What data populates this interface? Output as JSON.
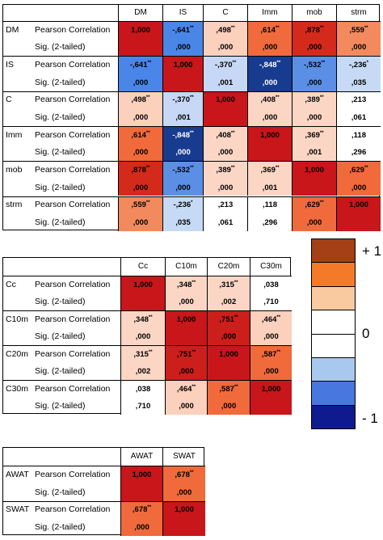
{
  "stat_labels": [
    "Pearson Correlation",
    "Sig. (2-tailed)"
  ],
  "tables": [
    {
      "columns": [
        "DM",
        "IS",
        "C",
        "Imm",
        "mob",
        "strm"
      ],
      "rows": [
        {
          "label": "DM",
          "cells": [
            {
              "value": "1,000",
              "color": "#c8161b"
            },
            {
              "value": "-,641",
              "stars": "**",
              "color": "#4a86e8"
            },
            {
              "value": ",498",
              "stars": "**",
              "color": "#fbd0bc"
            },
            {
              "value": ",614",
              "stars": "**",
              "color": "#f06a3c"
            },
            {
              "value": ",878",
              "stars": "**",
              "color": "#d42a1c"
            },
            {
              "value": ",559",
              "stars": "**",
              "color": "#f38a5e"
            }
          ],
          "sig": [
            null,
            ",000",
            ",000",
            ",000",
            ",000",
            ",000"
          ]
        },
        {
          "label": "IS",
          "cells": [
            {
              "value": "-,641",
              "stars": "**",
              "color": "#4a86e8"
            },
            {
              "value": "1,000",
              "color": "#c8161b"
            },
            {
              "value": "-,370",
              "stars": "**",
              "color": "#c6d8f5"
            },
            {
              "value": "-,848",
              "stars": "**",
              "color": "#173b8f"
            },
            {
              "value": "-,532",
              "stars": "**",
              "color": "#5b8fe6"
            },
            {
              "value": "-,236",
              "stars": "*",
              "color": "#c6daf6"
            }
          ],
          "sig": [
            ",000",
            null,
            ",001",
            ",000",
            ",000",
            ",035"
          ]
        },
        {
          "label": "C",
          "cells": [
            {
              "value": ",498",
              "stars": "**",
              "color": "#fbd0bc"
            },
            {
              "value": "-,370",
              "stars": "**",
              "color": "#c6d8f5"
            },
            {
              "value": "1,000",
              "color": "#c8161b"
            },
            {
              "value": ",408",
              "stars": "**",
              "color": "#fbd6c4"
            },
            {
              "value": ",389",
              "stars": "**",
              "color": "#fbd6c4"
            },
            {
              "value": ",213",
              "color": "#ffffff"
            }
          ],
          "sig": [
            ",000",
            ",001",
            null,
            ",000",
            ",000",
            ",061"
          ]
        },
        {
          "label": "Imm",
          "cells": [
            {
              "value": ",614",
              "stars": "**",
              "color": "#f06a3c"
            },
            {
              "value": "-,848",
              "stars": "**",
              "color": "#173b8f"
            },
            {
              "value": ",408",
              "stars": "**",
              "color": "#fbd6c4"
            },
            {
              "value": "1,000",
              "color": "#c8161b"
            },
            {
              "value": ",369",
              "stars": "**",
              "color": "#fbd6c4"
            },
            {
              "value": ",118",
              "color": "#ffffff"
            }
          ],
          "sig": [
            ",000",
            ",000",
            ",000",
            null,
            ",001",
            ",296"
          ]
        },
        {
          "label": "mob",
          "cells": [
            {
              "value": ",878",
              "stars": "**",
              "color": "#d42a1c"
            },
            {
              "value": "-,532",
              "stars": "**",
              "color": "#5b8fe6"
            },
            {
              "value": ",389",
              "stars": "**",
              "color": "#fbd6c4"
            },
            {
              "value": ",369",
              "stars": "**",
              "color": "#fbd6c4"
            },
            {
              "value": "1,000",
              "color": "#c8161b"
            },
            {
              "value": ",629",
              "stars": "**",
              "color": "#f06a3c"
            }
          ],
          "sig": [
            ",000",
            ",000",
            ",000",
            ",001",
            null,
            ",000"
          ]
        },
        {
          "label": "strm",
          "cells": [
            {
              "value": ",559",
              "stars": "**",
              "color": "#f38a5e"
            },
            {
              "value": "-,236",
              "stars": "*",
              "color": "#c6daf6"
            },
            {
              "value": ",213",
              "color": "#ffffff"
            },
            {
              "value": ",118",
              "color": "#ffffff"
            },
            {
              "value": ",629",
              "stars": "**",
              "color": "#f06a3c"
            },
            {
              "value": "1,000",
              "color": "#c8161b"
            }
          ],
          "sig": [
            ",000",
            ",035",
            ",061",
            ",296",
            ",000",
            null
          ]
        }
      ]
    },
    {
      "columns": [
        "Cc",
        "C10m",
        "C20m",
        "C30m"
      ],
      "rows": [
        {
          "label": "Cc",
          "cells": [
            {
              "value": "1,000",
              "color": "#c8161b"
            },
            {
              "value": ",348",
              "stars": "**",
              "color": "#fbd6c4"
            },
            {
              "value": ",315",
              "stars": "**",
              "color": "#fbd6c4"
            },
            {
              "value": ",038",
              "color": "#ffffff"
            }
          ],
          "sig": [
            null,
            ",000",
            ",002",
            ",710"
          ]
        },
        {
          "label": "C10m",
          "cells": [
            {
              "value": ",348",
              "stars": "**",
              "color": "#fbd6c4"
            },
            {
              "value": "1,000",
              "color": "#c8161b"
            },
            {
              "value": ",751",
              "stars": "**",
              "color": "#cc1e1b"
            },
            {
              "value": ",464",
              "stars": "**",
              "color": "#fbd0bc"
            }
          ],
          "sig": [
            ",000",
            null,
            ",000",
            ",000"
          ]
        },
        {
          "label": "C20m",
          "cells": [
            {
              "value": ",315",
              "stars": "**",
              "color": "#fbd6c4"
            },
            {
              "value": ",751",
              "stars": "**",
              "color": "#cc1e1b"
            },
            {
              "value": "1,000",
              "color": "#c8161b"
            },
            {
              "value": ",587",
              "stars": "**",
              "color": "#f06a3c"
            }
          ],
          "sig": [
            ",002",
            ",000",
            null,
            ",000"
          ]
        },
        {
          "label": "C30m",
          "cells": [
            {
              "value": ",038",
              "color": "#ffffff"
            },
            {
              "value": ",464",
              "stars": "**",
              "color": "#fbd0bc"
            },
            {
              "value": ",587",
              "stars": "**",
              "color": "#f06a3c"
            },
            {
              "value": "1,000",
              "color": "#c8161b"
            }
          ],
          "sig": [
            ",710",
            ",000",
            ",000",
            null
          ]
        }
      ]
    },
    {
      "columns": [
        "AWAT",
        "SWAT"
      ],
      "rows": [
        {
          "label": "AWAT",
          "cells": [
            {
              "value": "1,000",
              "color": "#c8161b"
            },
            {
              "value": ",678",
              "stars": "**",
              "color": "#f06a3c"
            }
          ],
          "sig": [
            null,
            ",000"
          ]
        },
        {
          "label": "SWAT",
          "cells": [
            {
              "value": ",678",
              "stars": "**",
              "color": "#f06a3c"
            },
            {
              "value": "1,000",
              "color": "#c8161b"
            }
          ],
          "sig": [
            ",000",
            null
          ]
        }
      ]
    }
  ],
  "legend": {
    "labels": [
      "+ 1",
      "0",
      "- 1"
    ],
    "colors": [
      "#a43f16",
      "#f47a2a",
      "#f9c9a0",
      "#ffffff",
      "#ffffff",
      "#a9c8f0",
      "#4877e0",
      "#0f1a8e"
    ]
  }
}
